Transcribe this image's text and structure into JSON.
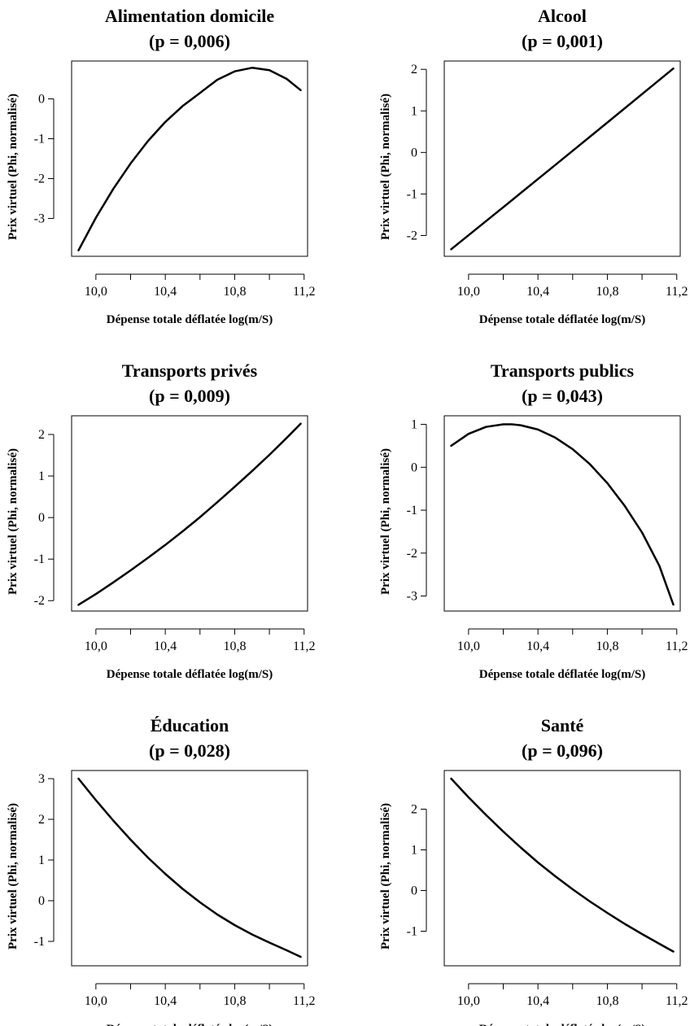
{
  "chart_data": [
    {
      "type": "line",
      "title": "Alimentation domicile",
      "subtitle": "(p = 0,006)",
      "xlabel": "Dépense totale déflatée log(m/S)",
      "ylabel": "Prix virtuel (Phi, normalisé)",
      "xlim": [
        9.86,
        11.22
      ],
      "ylim": [
        -3.95,
        0.95
      ],
      "xticks": [
        10.0,
        10.2,
        10.4,
        10.6,
        10.8,
        11.0,
        11.2
      ],
      "xtick_labels": [
        "10,0",
        "",
        "10,4",
        "",
        "10,8",
        "",
        "11,2"
      ],
      "yticks": [
        0,
        -1,
        -2,
        -3
      ],
      "ytick_labels": [
        "0",
        "-1",
        "-2",
        "-3"
      ],
      "series": [
        {
          "x": [
            9.9,
            10.0,
            10.1,
            10.2,
            10.3,
            10.4,
            10.5,
            10.6,
            10.7,
            10.8,
            10.9,
            11.0,
            11.1,
            11.18
          ],
          "y": [
            -3.8,
            -2.98,
            -2.26,
            -1.62,
            -1.06,
            -0.58,
            -0.18,
            0.15,
            0.48,
            0.69,
            0.78,
            0.72,
            0.5,
            0.22
          ]
        }
      ]
    },
    {
      "type": "line",
      "title": "Alcool",
      "subtitle": "(p = 0,001)",
      "xlabel": "Dépense totale déflatée log(m/S)",
      "ylabel": "Prix virtuel (Phi, normalisé)",
      "xlim": [
        9.86,
        11.22
      ],
      "ylim": [
        -2.5,
        2.2
      ],
      "xticks": [
        10.0,
        10.2,
        10.4,
        10.6,
        10.8,
        11.0,
        11.2
      ],
      "xtick_labels": [
        "10,0",
        "",
        "10,4",
        "",
        "10,8",
        "",
        "11,2"
      ],
      "yticks": [
        2,
        1,
        0,
        -1,
        -2
      ],
      "ytick_labels": [
        "2",
        "1",
        "0",
        "-1",
        "-2"
      ],
      "series": [
        {
          "x": [
            9.9,
            10.2,
            10.5,
            10.8,
            11.18
          ],
          "y": [
            -2.33,
            -1.32,
            -0.3,
            0.72,
            2.02
          ]
        }
      ]
    },
    {
      "type": "line",
      "title": "Transports privés",
      "subtitle": "(p = 0,009)",
      "xlabel": "Dépense totale déflatée log(m/S)",
      "ylabel": "Prix virtuel (Phi, normalisé)",
      "xlim": [
        9.86,
        11.22
      ],
      "ylim": [
        -2.25,
        2.45
      ],
      "xticks": [
        10.0,
        10.2,
        10.4,
        10.6,
        10.8,
        11.0,
        11.2
      ],
      "xtick_labels": [
        "10,0",
        "",
        "10,4",
        "",
        "10,8",
        "",
        "11,2"
      ],
      "yticks": [
        2,
        1,
        0,
        -1,
        -2
      ],
      "ytick_labels": [
        "2",
        "1",
        "0",
        "-1",
        "-2"
      ],
      "series": [
        {
          "x": [
            9.9,
            10.0,
            10.1,
            10.2,
            10.3,
            10.4,
            10.5,
            10.6,
            10.7,
            10.8,
            10.9,
            11.0,
            11.1,
            11.18
          ],
          "y": [
            -2.1,
            -1.84,
            -1.56,
            -1.27,
            -0.97,
            -0.66,
            -0.33,
            0.01,
            0.37,
            0.74,
            1.12,
            1.51,
            1.92,
            2.26
          ]
        }
      ]
    },
    {
      "type": "line",
      "title": "Transports publics",
      "subtitle": "(p = 0,043)",
      "xlabel": "Dépense totale déflatée log(m/S)",
      "ylabel": "Prix virtuel (Phi, normalisé)",
      "xlim": [
        9.86,
        11.22
      ],
      "ylim": [
        -3.35,
        1.2
      ],
      "xticks": [
        10.0,
        10.2,
        10.4,
        10.6,
        10.8,
        11.0,
        11.2
      ],
      "xtick_labels": [
        "10,0",
        "",
        "10,4",
        "",
        "10,8",
        "",
        "11,2"
      ],
      "yticks": [
        1,
        0,
        -1,
        -2,
        -3
      ],
      "ytick_labels": [
        "1",
        "0",
        "-1",
        "-2",
        "-3"
      ],
      "series": [
        {
          "x": [
            9.9,
            10.0,
            10.1,
            10.2,
            10.25,
            10.3,
            10.4,
            10.5,
            10.6,
            10.7,
            10.8,
            10.9,
            11.0,
            11.1,
            11.18
          ],
          "y": [
            0.5,
            0.78,
            0.94,
            1.0,
            1.0,
            0.98,
            0.88,
            0.69,
            0.42,
            0.07,
            -0.37,
            -0.9,
            -1.52,
            -2.3,
            -3.2
          ]
        }
      ]
    },
    {
      "type": "line",
      "title": "Éducation",
      "subtitle": "(p = 0,028)",
      "xlabel": "Dépense totale déflatée log(m/S)",
      "ylabel": "Prix virtuel (Phi, normalisé)",
      "xlim": [
        9.86,
        11.22
      ],
      "ylim": [
        -1.6,
        3.2
      ],
      "xticks": [
        10.0,
        10.2,
        10.4,
        10.6,
        10.8,
        11.0,
        11.2
      ],
      "xtick_labels": [
        "10,0",
        "",
        "10,4",
        "",
        "10,8",
        "",
        "11,2"
      ],
      "yticks": [
        3,
        2,
        1,
        0,
        -1
      ],
      "ytick_labels": [
        "3",
        "2",
        "1",
        "0",
        "-1"
      ],
      "series": [
        {
          "x": [
            9.9,
            10.0,
            10.1,
            10.2,
            10.3,
            10.4,
            10.5,
            10.6,
            10.7,
            10.8,
            10.9,
            11.0,
            11.1,
            11.18
          ],
          "y": [
            3.0,
            2.47,
            1.97,
            1.5,
            1.06,
            0.66,
            0.29,
            -0.04,
            -0.34,
            -0.6,
            -0.83,
            -1.03,
            -1.22,
            -1.38
          ]
        }
      ]
    },
    {
      "type": "line",
      "title": "Santé",
      "subtitle": "(p = 0,096)",
      "xlabel": "Dépense totale déflatée log(m/S)",
      "ylabel": "Prix virtuel (Phi, normalisé)",
      "xlim": [
        9.86,
        11.22
      ],
      "ylim": [
        -1.85,
        2.95
      ],
      "xticks": [
        10.0,
        10.2,
        10.4,
        10.6,
        10.8,
        11.0,
        11.2
      ],
      "xtick_labels": [
        "10,0",
        "",
        "10,4",
        "",
        "10,8",
        "",
        "11,2"
      ],
      "yticks": [
        2,
        1,
        0,
        -1
      ],
      "ytick_labels": [
        "2",
        "1",
        "0",
        "-1"
      ],
      "series": [
        {
          "x": [
            9.9,
            10.0,
            10.1,
            10.2,
            10.3,
            10.4,
            10.5,
            10.6,
            10.7,
            10.8,
            10.9,
            11.0,
            11.1,
            11.18
          ],
          "y": [
            2.75,
            2.29,
            1.86,
            1.45,
            1.06,
            0.69,
            0.35,
            0.03,
            -0.27,
            -0.55,
            -0.82,
            -1.07,
            -1.31,
            -1.5
          ]
        }
      ]
    }
  ]
}
